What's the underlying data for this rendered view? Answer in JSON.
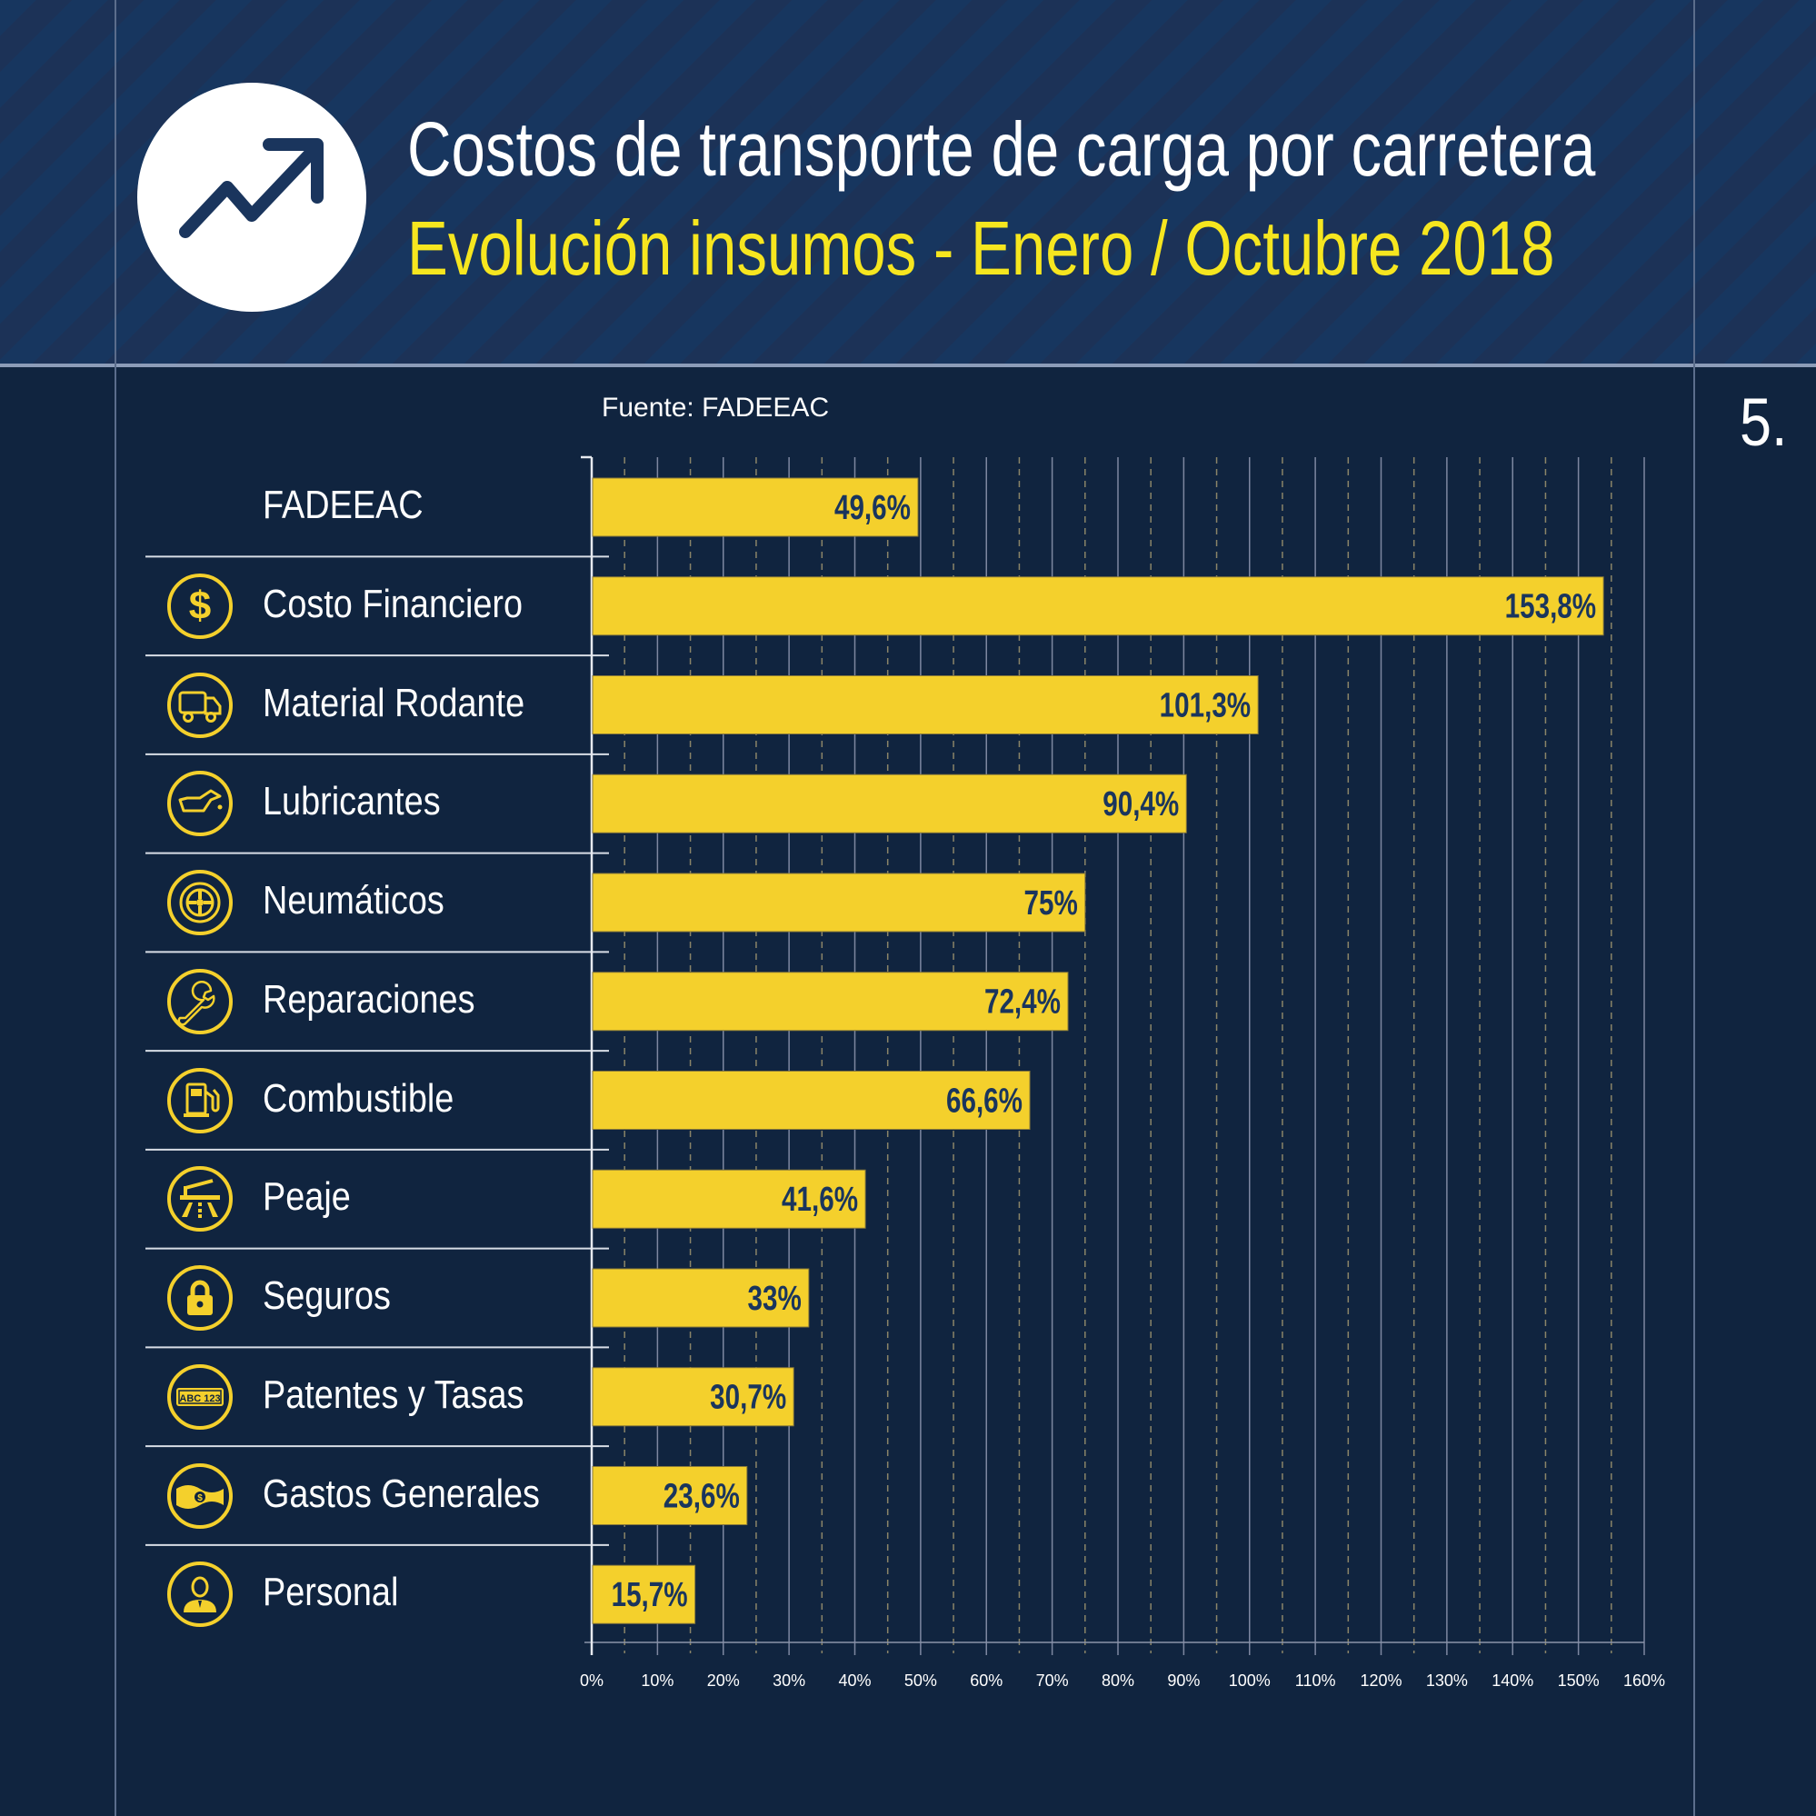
{
  "header": {
    "title": "Costos de transporte de carga por carretera",
    "subtitle": "Evolución insumos - Enero / Octubre 2018",
    "icon": "trending-up-icon"
  },
  "page_number": "5.",
  "source": "Fuente: FADEEAC",
  "colors": {
    "background": "#10243f",
    "header_stripe_a": "#17365f",
    "header_stripe_b": "#1c3257",
    "bar": "#f4d02c",
    "bar_label": "#1a355d",
    "subtitle": "#f6e61f",
    "icon": "#f4d02c"
  },
  "rows": [
    {
      "label": "FADEEAC",
      "icon": null,
      "value_label": "49,6%"
    },
    {
      "label": "Costo Financiero",
      "icon": "dollar-icon",
      "value_label": "153,8%"
    },
    {
      "label": "Material Rodante",
      "icon": "truck-icon",
      "value_label": "101,3%"
    },
    {
      "label": "Lubricantes",
      "icon": "oil-can-icon",
      "value_label": "90,4%"
    },
    {
      "label": "Neumáticos",
      "icon": "tire-icon",
      "value_label": "75%"
    },
    {
      "label": "Reparaciones",
      "icon": "wrench-icon",
      "value_label": "72,4%"
    },
    {
      "label": "Combustible",
      "icon": "fuel-pump-icon",
      "value_label": "66,6%"
    },
    {
      "label": "Peaje",
      "icon": "toll-barrier-icon",
      "value_label": "41,6%"
    },
    {
      "label": "Seguros",
      "icon": "lock-icon",
      "value_label": "33%"
    },
    {
      "label": "Patentes y Tasas",
      "icon": "license-plate-icon",
      "value_label": "30,7%",
      "icon_text": "ABC 123"
    },
    {
      "label": "Gastos Generales",
      "icon": "banknote-icon",
      "value_label": "23,6%"
    },
    {
      "label": "Personal",
      "icon": "person-icon",
      "value_label": "15,7%"
    }
  ],
  "chart_data": {
    "type": "bar",
    "orientation": "horizontal",
    "title": "Costos de transporte de carga por carretera",
    "subtitle": "Evolución insumos - Enero / Octubre 2018",
    "categories": [
      "FADEEAC",
      "Costo Financiero",
      "Material Rodante",
      "Lubricantes",
      "Neumáticos",
      "Reparaciones",
      "Combustible",
      "Peaje",
      "Seguros",
      "Patentes y Tasas",
      "Gastos Generales",
      "Personal"
    ],
    "values": [
      49.6,
      153.8,
      101.3,
      90.4,
      75,
      72.4,
      66.6,
      41.6,
      33,
      30.7,
      23.6,
      15.7
    ],
    "value_labels": [
      "49,6%",
      "153,8%",
      "101,3%",
      "90,4%",
      "75%",
      "72,4%",
      "66,6%",
      "41,6%",
      "33%",
      "30,7%",
      "23,6%",
      "15,7%"
    ],
    "xlim": [
      0,
      160
    ],
    "xticks": [
      0,
      10,
      20,
      30,
      40,
      50,
      60,
      70,
      80,
      90,
      100,
      110,
      120,
      130,
      140,
      150,
      160
    ],
    "xtick_labels": [
      "0%",
      "10%",
      "20%",
      "30%",
      "40%",
      "50%",
      "60%",
      "70%",
      "80%",
      "90%",
      "100%",
      "110%",
      "120%",
      "130%",
      "140%",
      "150%",
      "160%"
    ],
    "minor_grid_step": 5,
    "grid": true,
    "xlabel": "",
    "ylabel": "",
    "source": "Fuente: FADEEAC"
  }
}
